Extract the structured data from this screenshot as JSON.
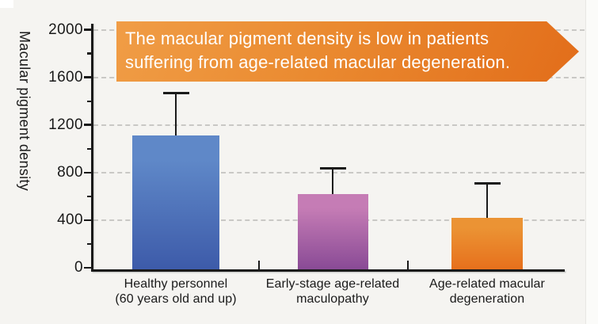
{
  "page": {
    "background": "#f5f4f1",
    "text_color": "#1a1a1a",
    "gridline_color": "#c9c8c5"
  },
  "banner": {
    "line1": "The macular pigment density is low in patients",
    "line2": "suffering from age-related macular degeneration.",
    "gradient_start": "#f09d46",
    "gradient_end": "#e26d1a",
    "text_color": "#ffffff"
  },
  "chart_data": {
    "type": "bar",
    "title": "",
    "xlabel": "",
    "ylabel": "Macular pigment density",
    "ylim": [
      0,
      2100
    ],
    "yticks_major": [
      0,
      400,
      800,
      1200,
      1600,
      2000
    ],
    "yticks_minor": [
      200,
      600,
      1000,
      1400,
      1800
    ],
    "grid": "horizontal dashed at major ticks",
    "legend": "none",
    "categories": [
      "Healthy personnel\n(60 years old and up)",
      "Early-stage age-related\nmaculopathy",
      "Age-related macular\ndegeneration"
    ],
    "values": [
      1110,
      620,
      420
    ],
    "error_upper": [
      360,
      215,
      290
    ],
    "bar_colors": [
      {
        "top": "#5f88c8",
        "bottom": "#3e5caa"
      },
      {
        "top": "#c57cb5",
        "bottom": "#8a4b96"
      },
      {
        "top": "#eb9334",
        "bottom": "#e7701c"
      }
    ],
    "error_bar_color": "#1a1a1a"
  }
}
